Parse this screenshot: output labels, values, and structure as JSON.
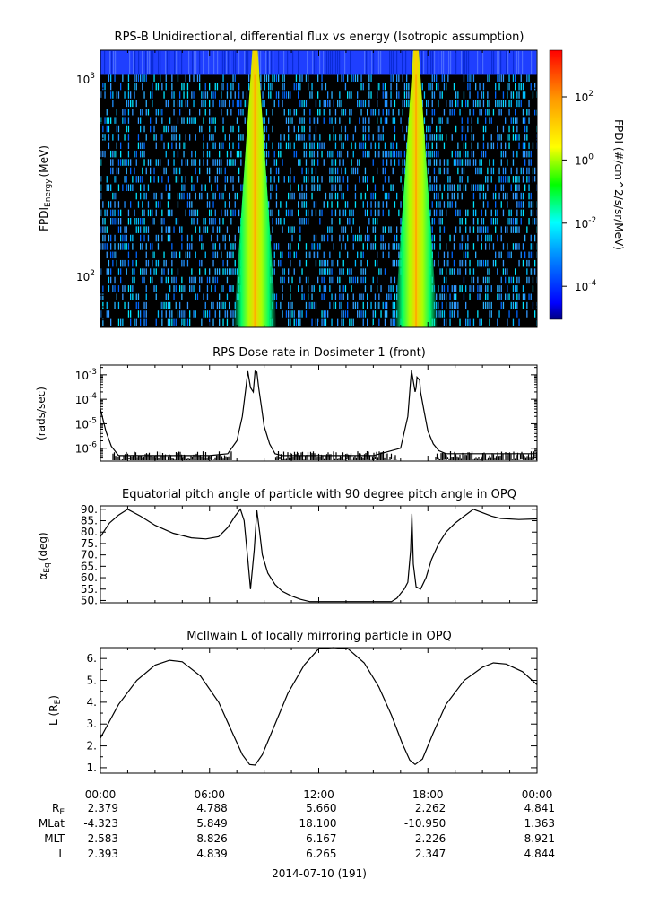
{
  "chart_data": [
    {
      "type": "heatmap",
      "title": "RPS-B  Unidirectional, differential flux vs energy (Isotropic assumption)",
      "ylabel": "FPDI",
      "ylabel_sub": "Energy",
      "ylabel_unit": "(MeV)",
      "yscale": "log",
      "ylim": [
        55,
        1400
      ],
      "ytick_base": "10",
      "yticks": [
        {
          "value": 100,
          "exp": "2"
        },
        {
          "value": 1000,
          "exp": "3"
        }
      ],
      "xlim_hours": [
        0,
        24
      ],
      "colorbar": {
        "label": "FPDI (#/cm^2/s/sr/MeV)",
        "scale": "log",
        "range": [
          9e-06,
          3000
        ],
        "tick_base": "10",
        "ticks": [
          {
            "value": 0.0001,
            "exp": "-4"
          },
          {
            "value": 0.01,
            "exp": "-2"
          },
          {
            "value": 1,
            "exp": "0"
          },
          {
            "value": 100,
            "exp": "2"
          }
        ]
      },
      "bands_hours": [
        {
          "start": 8.3,
          "end": 8.7,
          "peak": 8.5
        },
        {
          "start": 17.15,
          "end": 17.55,
          "peak": 17.35
        }
      ]
    },
    {
      "type": "line",
      "title": "RPS  Dose rate in Dosimeter 1 (front)",
      "ylabel": "(rads/sec)",
      "yscale": "log",
      "ylim": [
        3e-07,
        0.0025
      ],
      "ytick_base": "10",
      "yticks": [
        {
          "value": 1e-06,
          "exp": "-6"
        },
        {
          "value": 1e-05,
          "exp": "-5"
        },
        {
          "value": 0.0001,
          "exp": "-4"
        },
        {
          "value": 0.001,
          "exp": "-3"
        }
      ],
      "x": [
        0,
        0.3,
        0.6,
        1.0,
        3.0,
        6.0,
        7.0,
        7.5,
        7.8,
        8.0,
        8.1,
        8.25,
        8.4,
        8.5,
        8.6,
        8.7,
        8.85,
        9.0,
        9.3,
        9.6,
        10.0,
        12.0,
        15.0,
        16.5,
        16.9,
        17.05,
        17.1,
        17.3,
        17.35,
        17.4,
        17.55,
        17.6,
        17.8,
        18.0,
        18.3,
        18.6,
        19.0,
        21.0,
        24.0
      ],
      "y": [
        4e-05,
        5e-06,
        1.2e-06,
        5e-07,
        5e-07,
        5e-07,
        6e-07,
        2e-06,
        2e-05,
        0.0003,
        0.0014,
        0.0003,
        0.0002,
        0.0014,
        0.0013,
        0.0003,
        5e-05,
        8e-06,
        1.5e-06,
        6e-07,
        5e-07,
        5e-07,
        5e-07,
        1e-06,
        2e-05,
        0.0006,
        0.0015,
        0.0002,
        0.0003,
        0.0008,
        0.0006,
        0.0002,
        3e-05,
        5e-06,
        1.5e-06,
        8e-07,
        6e-07,
        6e-07,
        6e-07
      ]
    },
    {
      "type": "line",
      "title": "Equatorial pitch angle of particle with 90 degree pitch angle in OPQ",
      "ylabel": "α",
      "ylabel_sub": "Eq",
      "ylabel_unit": "(deg)",
      "ylim": [
        49,
        91.5
      ],
      "yticks": [
        50,
        55,
        60,
        65,
        70,
        75,
        80,
        85,
        90
      ],
      "ytick_labels": [
        "50.",
        "55.",
        "60.",
        "65.",
        "70.",
        "75.",
        "80.",
        "85.",
        "90."
      ],
      "x": [
        0,
        0.5,
        1.0,
        1.5,
        2.2,
        3.0,
        4.0,
        5.0,
        5.8,
        6.5,
        7.0,
        7.4,
        7.7,
        7.9,
        8.1,
        8.25,
        8.45,
        8.6,
        8.75,
        8.9,
        9.2,
        9.6,
        10.0,
        10.5,
        11.0,
        11.5,
        16.0,
        16.3,
        16.5,
        16.7,
        16.9,
        17.05,
        17.12,
        17.2,
        17.35,
        17.6,
        17.9,
        18.2,
        18.6,
        19.0,
        19.5,
        20.0,
        20.5,
        21.0,
        21.5,
        22.0,
        23.0,
        24.0
      ],
      "y": [
        78,
        84,
        87.5,
        90,
        87,
        83,
        79.5,
        77.5,
        77,
        78,
        82,
        87,
        90,
        85,
        68,
        55,
        72,
        89.5,
        80,
        70,
        62,
        57,
        54,
        52,
        50.5,
        49.5,
        49.5,
        51,
        53,
        55,
        58,
        72,
        88,
        66,
        56,
        55,
        60,
        68,
        75,
        80,
        84,
        87,
        90,
        88.5,
        87,
        86,
        85.5,
        85.8
      ]
    },
    {
      "type": "line",
      "title": "McIlwain L of locally mirroring particle in OPQ",
      "ylabel": "L (R",
      "ylabel_sub": "E",
      "ylabel_unit": ")",
      "ylim": [
        0.75,
        6.5
      ],
      "yticks": [
        1,
        2,
        3,
        4,
        5,
        6
      ],
      "ytick_labels": [
        "1.",
        "2.",
        "3.",
        "4.",
        "5.",
        "6."
      ],
      "x": [
        0,
        1,
        2,
        3,
        3.8,
        4.5,
        5.5,
        6.5,
        7.2,
        7.8,
        8.2,
        8.5,
        8.9,
        9.5,
        10.3,
        11.2,
        12.0,
        12.8,
        13.6,
        14.5,
        15.3,
        16.0,
        16.6,
        17.0,
        17.3,
        17.7,
        18.3,
        19.0,
        20.0,
        21.0,
        21.6,
        22.3,
        23.2,
        24.0
      ],
      "y": [
        2.35,
        3.9,
        5.0,
        5.7,
        5.92,
        5.85,
        5.2,
        4.0,
        2.7,
        1.6,
        1.15,
        1.12,
        1.6,
        2.8,
        4.4,
        5.7,
        6.45,
        6.6,
        6.45,
        5.8,
        4.7,
        3.4,
        2.1,
        1.35,
        1.15,
        1.4,
        2.6,
        3.9,
        5.0,
        5.6,
        5.8,
        5.75,
        5.4,
        4.8
      ]
    }
  ],
  "xaxis": {
    "ticks_hours": [
      0,
      6,
      12,
      18,
      24
    ],
    "tick_labels": [
      "00:00",
      "06:00",
      "12:00",
      "18:00",
      "00:00"
    ],
    "row_labels": [
      {
        "main": "R",
        "sub": "E"
      },
      {
        "main": "MLat",
        "sub": ""
      },
      {
        "main": "MLT",
        "sub": ""
      },
      {
        "main": "L",
        "sub": ""
      }
    ],
    "rows": [
      [
        "2.379",
        "4.788",
        "5.660",
        "2.262",
        "4.841"
      ],
      [
        "-4.323",
        "5.849",
        "18.100",
        "-10.950",
        "1.363"
      ],
      [
        "2.583",
        "8.826",
        "6.167",
        "2.226",
        "8.921"
      ],
      [
        "2.393",
        "4.839",
        "6.265",
        "2.347",
        "4.844"
      ]
    ],
    "date_label": "2014-07-10 (191)"
  }
}
